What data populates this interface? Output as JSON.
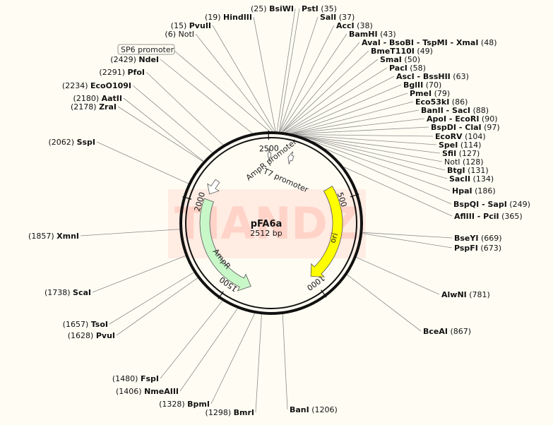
{
  "plasmid": {
    "name": "pFA6a",
    "size_label": "2512 bp",
    "length": 2512
  },
  "watermark": "TIANDZ",
  "ruler": [
    "500",
    "1000",
    "1500",
    "2000",
    "2500"
  ],
  "features": {
    "ampr": {
      "label": "AmpR",
      "color": "#c8f7c8"
    },
    "ori": {
      "label": "ori",
      "color": "#ffff00"
    },
    "ampr_promoter": {
      "label": "AmpR promoter"
    },
    "t7_promoter": {
      "label": "T7 promoter"
    },
    "sp6_promoter": {
      "label": "SP6 promoter"
    }
  },
  "sites_left": [
    {
      "num": "(25)",
      "name": "BsiWI"
    },
    {
      "num": "(19)",
      "name": "HindIII"
    },
    {
      "num": "(15)",
      "name": "PvuII"
    },
    {
      "num": "(6)",
      "name": "NotI",
      "plain": true
    },
    {
      "num": "(2429)",
      "name": "NdeI"
    },
    {
      "num": "(2291)",
      "name": "PfoI"
    },
    {
      "num": "(2234)",
      "name": "EcoO109I"
    },
    {
      "num": "(2180)",
      "name": "AatII"
    },
    {
      "num": "(2178)",
      "name": "ZraI"
    },
    {
      "num": "(2062)",
      "name": "SspI"
    },
    {
      "num": "(1857)",
      "name": "XmnI"
    },
    {
      "num": "(1738)",
      "name": "ScaI"
    },
    {
      "num": "(1657)",
      "name": "TsoI"
    },
    {
      "num": "(1628)",
      "name": "PvuI"
    },
    {
      "num": "(1480)",
      "name": "FspI"
    },
    {
      "num": "(1406)",
      "name": "NmeAIII"
    },
    {
      "num": "(1328)",
      "name": "BpmI"
    },
    {
      "num": "(1298)",
      "name": "BmrI"
    }
  ],
  "sites_right": [
    {
      "name": "PstI",
      "num": "(35)"
    },
    {
      "name": "SalI",
      "num": "(37)"
    },
    {
      "name": "AccI",
      "num": "(38)"
    },
    {
      "name": "BamHI",
      "num": "(43)"
    },
    {
      "name": "AvaI - BsoBI - TspMI - XmaI",
      "num": "(48)"
    },
    {
      "name": "BmeT110I",
      "num": "(49)"
    },
    {
      "name": "SmaI",
      "num": "(50)"
    },
    {
      "name": "PacI",
      "num": "(58)"
    },
    {
      "name": "AscI - BssHII",
      "num": "(63)"
    },
    {
      "name": "BglII",
      "num": "(70)"
    },
    {
      "name": "PmeI",
      "num": "(79)"
    },
    {
      "name": "Eco53kI",
      "num": "(86)"
    },
    {
      "name": "BanII - SacI",
      "num": "(88)"
    },
    {
      "name": "ApoI - EcoRI",
      "num": "(90)"
    },
    {
      "name": "BspDI - ClaI",
      "num": "(97)"
    },
    {
      "name": "EcoRV",
      "num": "(104)"
    },
    {
      "name": "SpeI",
      "num": "(114)"
    },
    {
      "name": "SfiI",
      "num": "(127)"
    },
    {
      "name": "NotI",
      "num": "(128)",
      "plain": true
    },
    {
      "name": "BtgI",
      "num": "(131)"
    },
    {
      "name": "SacII",
      "num": "(134)"
    },
    {
      "name": "HpaI",
      "num": "(186)"
    },
    {
      "name": "BspQI - SapI",
      "num": "(249)"
    },
    {
      "name": "AflIII - PciI",
      "num": "(365)"
    },
    {
      "name": "BseYI",
      "num": "(669)"
    },
    {
      "name": "PspFI",
      "num": "(673)"
    },
    {
      "name": "AlwNI",
      "num": "(781)"
    },
    {
      "name": "BceAI",
      "num": "(867)"
    },
    {
      "name": "BanI",
      "num": "(1206)"
    }
  ]
}
